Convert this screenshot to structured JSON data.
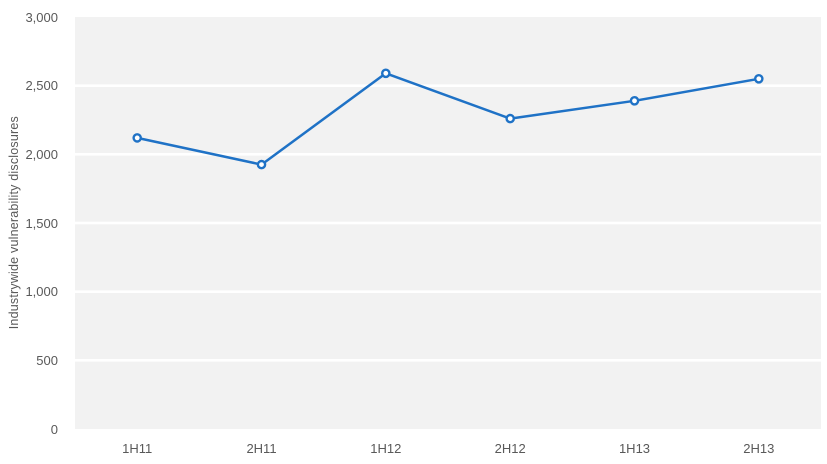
{
  "chart_data": {
    "type": "line",
    "title": "",
    "xlabel": "",
    "ylabel": "Industrywide vulnerability disclosures",
    "categories": [
      "1H11",
      "2H11",
      "1H12",
      "2H12",
      "1H13",
      "2H13"
    ],
    "series": [
      {
        "name": "Industrywide vulnerability disclosures",
        "values": [
          2120,
          1925,
          2590,
          2260,
          2390,
          2550
        ]
      }
    ],
    "ylim": [
      0,
      3000
    ],
    "yticks": [
      {
        "value": 0,
        "label": "0"
      },
      {
        "value": 500,
        "label": "500"
      },
      {
        "value": 1000,
        "label": "1,000"
      },
      {
        "value": 1500,
        "label": "1,500"
      },
      {
        "value": 2000,
        "label": "2,000"
      },
      {
        "value": 2500,
        "label": "2,500"
      },
      {
        "value": 3000,
        "label": "3,000"
      }
    ],
    "grid": "horizontal-white-on-gray",
    "legend": "none",
    "marker": "open-circle",
    "colors": {
      "line": "#1F72C6",
      "marker_fill": "#FFFFFF",
      "plot_background": "#F2F2F2",
      "gridline": "#FFFFFF",
      "text": "#595959"
    }
  }
}
